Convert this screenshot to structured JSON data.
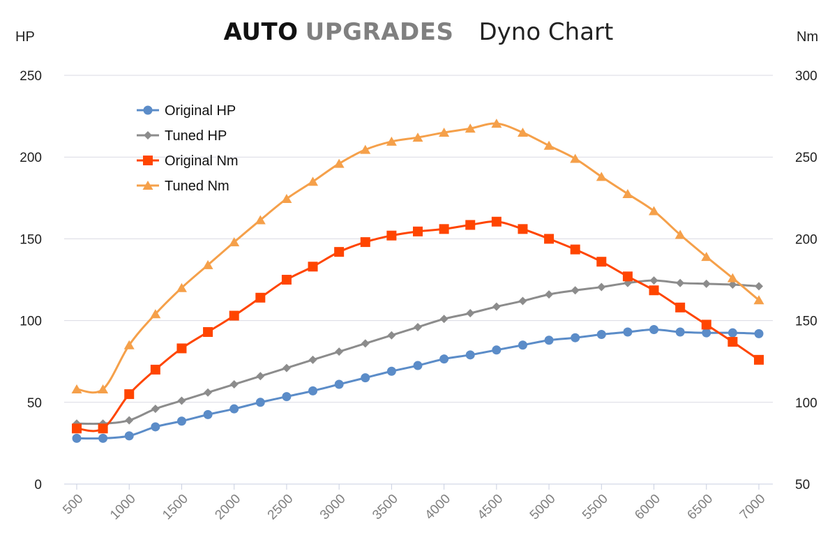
{
  "header": {
    "brand_primary": "AUTO",
    "brand_secondary": "UPGRADES",
    "title": "Dyno Chart"
  },
  "colors": {
    "original_hp": "#5b8cc8",
    "tuned_hp": "#8c8c8c",
    "original_nm": "#ff4500",
    "tuned_nm": "#f5a04a",
    "grid": "#d9d9e3",
    "tick_text": "#222222",
    "x_tick_text": "#808080"
  },
  "chart_data": {
    "type": "line",
    "title": "AUTO UPGRADES Dyno Chart",
    "x": [
      "500",
      "750",
      "1000",
      "1250",
      "1500",
      "1750",
      "2000",
      "2250",
      "2500",
      "2750",
      "3000",
      "3250",
      "3500",
      "3750",
      "4000",
      "4250",
      "4500",
      "4750",
      "5000",
      "5250",
      "5500",
      "5750",
      "6000",
      "6250",
      "6500",
      "6750",
      "7000"
    ],
    "x_tick_labels": [
      "500",
      "1000",
      "1500",
      "2000",
      "2500",
      "3000",
      "3500",
      "4000",
      "4500",
      "5000",
      "5500",
      "6000",
      "6500",
      "7000"
    ],
    "ylabel_left": "HP",
    "ylabel_right": "Nm",
    "ylim_left": [
      0,
      250
    ],
    "ylim_right": [
      50,
      300
    ],
    "yticks_left": [
      "0",
      "50",
      "100",
      "150",
      "200",
      "250"
    ],
    "yticks_right": [
      "50",
      "100",
      "150",
      "200",
      "250",
      "300"
    ],
    "legend_position": "top-left",
    "series": [
      {
        "name": "Original HP",
        "axis": "left",
        "marker": "circle",
        "color_key": "original_hp",
        "values": [
          28,
          28,
          29.5,
          35,
          38.5,
          42.5,
          46,
          50,
          53.5,
          57,
          61,
          65,
          69,
          72.5,
          76.5,
          79,
          82,
          85,
          88,
          89.5,
          91.5,
          93,
          94.5,
          93,
          92.5,
          92.5,
          92
        ]
      },
      {
        "name": "Tuned HP",
        "axis": "left",
        "marker": "diamond",
        "color_key": "tuned_hp",
        "values": [
          37,
          37,
          39,
          46,
          51,
          56,
          61,
          66,
          71,
          76,
          81,
          86,
          91,
          96,
          101,
          104.5,
          108.5,
          112,
          116,
          118.5,
          120.5,
          123,
          124.5,
          123,
          122.5,
          122,
          121
        ]
      },
      {
        "name": "Original Nm",
        "axis": "right",
        "marker": "square",
        "color_key": "original_nm",
        "values": [
          84,
          84,
          105,
          120,
          133,
          143,
          153,
          164,
          175,
          183,
          192,
          198,
          202,
          204.5,
          206,
          208.5,
          210.5,
          206,
          200,
          193.5,
          186,
          177,
          168.5,
          158,
          147.5,
          137,
          126
        ]
      },
      {
        "name": "Tuned Nm",
        "axis": "right",
        "marker": "triangle",
        "color_key": "tuned_nm",
        "values": [
          108,
          108,
          135,
          154,
          170,
          184,
          198,
          211.5,
          224.5,
          235,
          246,
          254.5,
          259.5,
          262,
          265,
          267.5,
          270.5,
          265,
          257,
          249,
          238,
          227.5,
          217,
          202.5,
          189,
          176,
          162.5
        ]
      }
    ]
  }
}
